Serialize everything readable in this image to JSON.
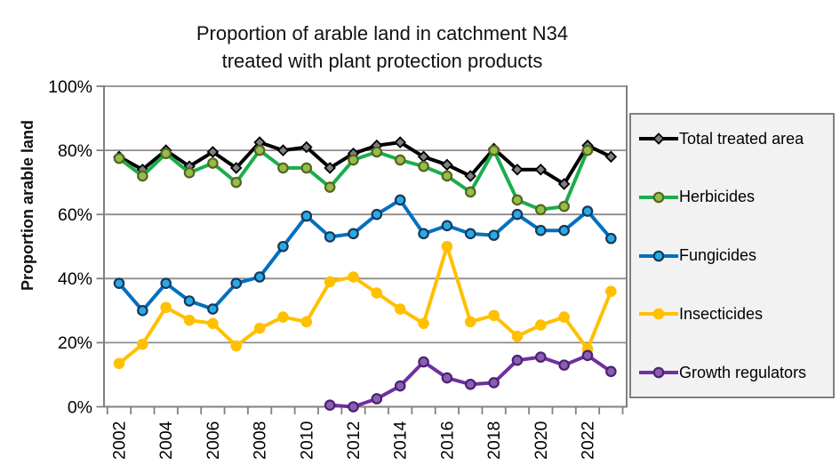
{
  "chart_data": {
    "type": "line",
    "title": "Proportion of arable land in catchment N34 treated with plant protection products",
    "title_lines": [
      "Proportion of arable land in catchment N34",
      "treated with plant protection products"
    ],
    "ylabel": "Proportion arable land",
    "ylim": [
      0,
      100
    ],
    "y_ticks": [
      0,
      20,
      40,
      60,
      80,
      100
    ],
    "y_tick_labels": [
      "0%",
      "20%",
      "40%",
      "60%",
      "80%",
      "100%"
    ],
    "grid": true,
    "legend_position": "right",
    "x": [
      2002,
      2003,
      2004,
      2005,
      2006,
      2007,
      2008,
      2009,
      2010,
      2011,
      2012,
      2013,
      2014,
      2015,
      2016,
      2017,
      2018,
      2019,
      2020,
      2021,
      2022,
      2023
    ],
    "x_labeled_ticks": [
      2002,
      2004,
      2006,
      2008,
      2010,
      2012,
      2014,
      2016,
      2018,
      2020,
      2022
    ],
    "series": [
      {
        "name": "Total treated area",
        "color": "#000000",
        "marker": "diamond",
        "marker_fill": "#808080",
        "marker_stroke": "#000000",
        "values": [
          78,
          74,
          80,
          75,
          79.5,
          74.5,
          82.5,
          80,
          81,
          74.5,
          79,
          81.5,
          82.5,
          78,
          75.5,
          72,
          80.5,
          74,
          74,
          69.5,
          81.5,
          78
        ]
      },
      {
        "name": "Herbicides",
        "color": "#1CAD4C",
        "marker": "circle",
        "marker_fill": "#94BE4A",
        "marker_stroke": "#56641F",
        "values": [
          77.5,
          72,
          79,
          73,
          76,
          70,
          80,
          74.5,
          74.5,
          68.5,
          77,
          79.5,
          77,
          75,
          72,
          67,
          80,
          64.5,
          61.5,
          62.5,
          80,
          null
        ]
      },
      {
        "name": "Fungicides",
        "color": "#0070C0",
        "marker": "circle",
        "marker_fill": "#29ABE2",
        "marker_stroke": "#17375E",
        "values": [
          38.5,
          30,
          38.5,
          33,
          30.5,
          38.5,
          40.5,
          50,
          59.5,
          53,
          54,
          60,
          64.5,
          54,
          56.5,
          54,
          53.5,
          60,
          55,
          55,
          61,
          52.5
        ]
      },
      {
        "name": "Insecticides",
        "color": "#FFC000",
        "marker": "circle",
        "marker_fill": "#FFC000",
        "marker_stroke": "#FFC000",
        "values": [
          13.5,
          19.5,
          31,
          27,
          26,
          19,
          24.5,
          28,
          26.5,
          39,
          40.5,
          35.5,
          30.5,
          26,
          50,
          26.5,
          28.5,
          22,
          25.5,
          28,
          18,
          36
        ]
      },
      {
        "name": "Growth regulators",
        "color": "#7030A0",
        "marker": "circle",
        "marker_fill": "#8A5FB0",
        "marker_stroke": "#4C2173",
        "values": [
          null,
          null,
          null,
          null,
          null,
          null,
          null,
          null,
          null,
          0.5,
          0,
          2.5,
          6.5,
          14,
          9,
          7,
          7.5,
          14.5,
          15.5,
          13,
          16,
          11
        ]
      }
    ]
  },
  "style_colors": {
    "gridline": "#8C8C8C",
    "axis": "#808080",
    "legend_bg": "#F2F2F2",
    "legend_border": "#7F7F7F"
  }
}
